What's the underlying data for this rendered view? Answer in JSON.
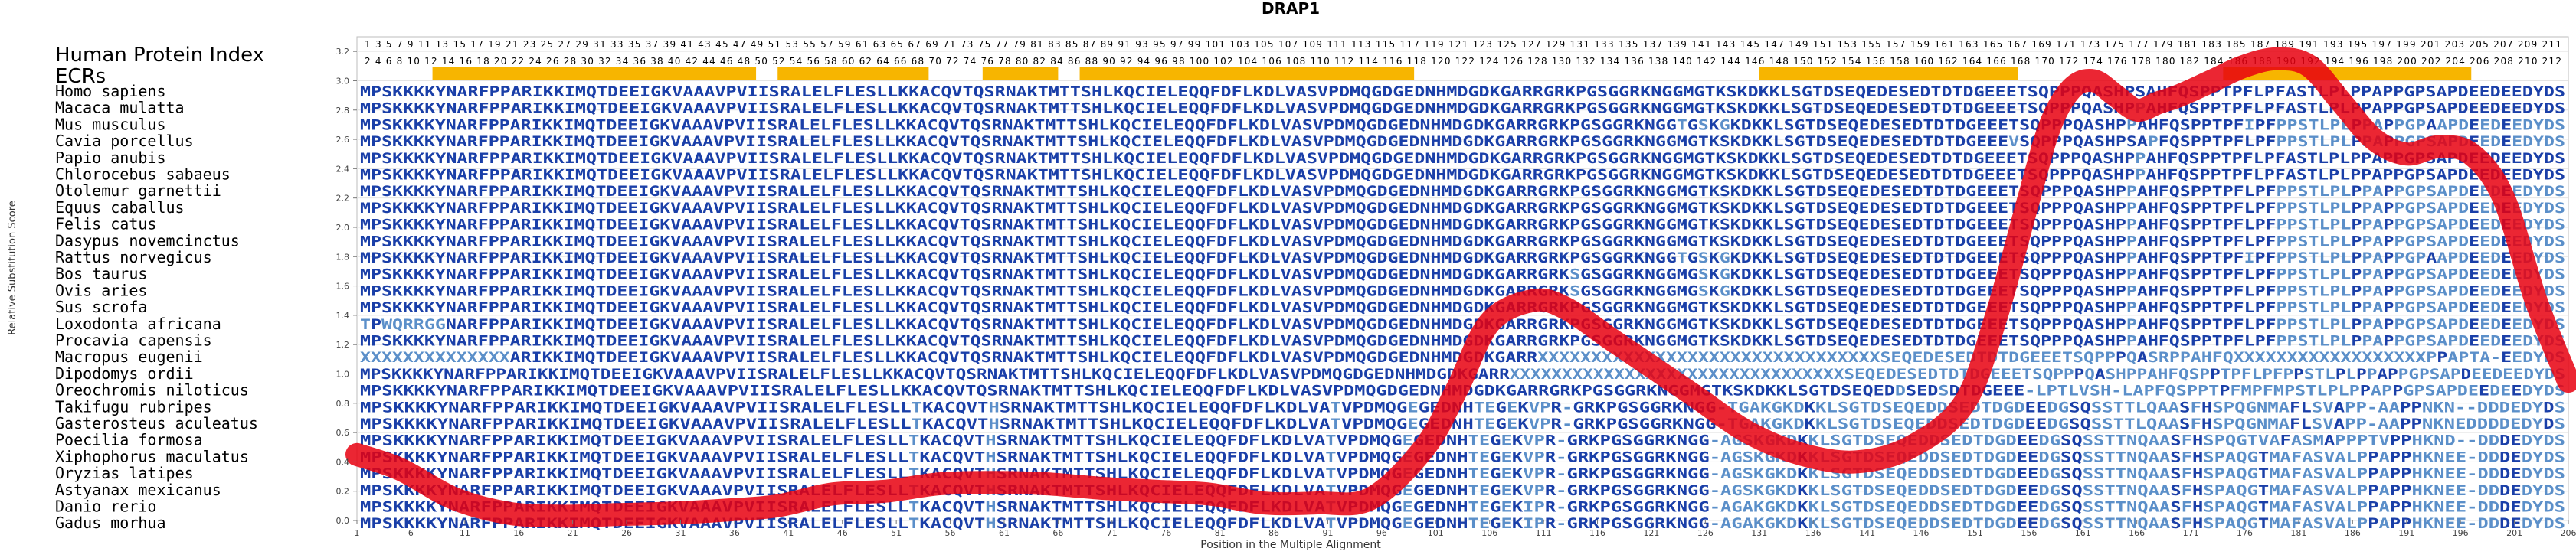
{
  "chart_data": {
    "type": "line",
    "title": "DRAP1",
    "xlabel": "Position in the Multiple Alignment",
    "ylabel": "Relative Substitution Score",
    "xlim": [
      1,
      206
    ],
    "ylim": [
      0.0,
      3.3
    ],
    "x_ticks": [
      1,
      6,
      11,
      16,
      21,
      26,
      31,
      36,
      41,
      46,
      51,
      56,
      61,
      66,
      71,
      76,
      81,
      86,
      91,
      96,
      101,
      106,
      111,
      116,
      121,
      126,
      131,
      136,
      141,
      146,
      151,
      156,
      161,
      166,
      171,
      176,
      181,
      186,
      191,
      196,
      201,
      206
    ],
    "y_ticks": [
      "0.0",
      "0.2",
      "0.4",
      "0.6",
      "0.8",
      "1.0",
      "1.2",
      "1.4",
      "1.6",
      "1.8",
      "2.0",
      "2.2",
      "2.4",
      "2.6",
      "2.8",
      "3.0",
      "3.2"
    ],
    "series": [
      {
        "x": [
          1,
          5,
          10,
          15,
          20,
          25,
          30,
          35,
          40,
          45,
          50,
          55,
          60,
          65,
          70,
          75,
          80,
          85,
          90,
          95,
          100,
          103,
          106,
          110,
          113,
          117,
          120,
          125,
          130,
          135,
          140,
          145,
          150,
          153,
          156,
          158,
          160,
          162,
          164,
          166,
          168,
          170,
          173,
          176,
          179,
          182,
          185,
          188,
          191,
          194,
          197,
          200,
          203,
          206
        ],
        "y": [
          0.45,
          0.35,
          0.15,
          0.05,
          0.03,
          0.04,
          0.05,
          0.07,
          0.1,
          0.18,
          0.2,
          0.25,
          0.26,
          0.25,
          0.22,
          0.2,
          0.18,
          0.12,
          0.12,
          0.15,
          0.5,
          0.9,
          1.35,
          1.5,
          1.45,
          1.25,
          1.1,
          0.85,
          0.6,
          0.45,
          0.4,
          0.5,
          0.8,
          1.4,
          2.2,
          2.7,
          2.95,
          3.0,
          2.9,
          2.8,
          2.85,
          2.9,
          3.0,
          3.1,
          3.15,
          3.1,
          2.85,
          2.6,
          2.5,
          2.55,
          2.5,
          2.2,
          1.5,
          0.95
        ]
      }
    ]
  },
  "alignment": {
    "index_label": "Human Protein Index",
    "ecr_label": "ECRs",
    "human_index_top": "1 3 5 7 9 11 13 15 17 19 21 23 25 27 29 31 33 35 37 39 41 43 45 47 49 51 53 55 57 59 61 63 65 67 69 71 73 75 77 79 81 83 85 87 89 91 93 95 97 99 101 103 105 107 109 111 113 115 117 119 121 123 125 127 129 131 133 135 137 139 141 143 145 147 149 151 153 155 157 159 161 163 165 167 169 171 173 175 177 179 181 183 185 187 189 191 193 195 197 199 201 203 205 207 209 211",
    "human_index_bottom": "2 4 6 8 10 12 14 16 18 20 22 24 26 28 30 32 34 36 38 40 42 44 46 48 50 52 54 56 58 60 62 64 66 68 70 72 74 76 78 80 82 84 86 88 90 92 94 96 98 100 102 104 106 108 110 112 114 116 118 120 122 124 126 128 130 132 134 136 138 140 142 144 146 148 150 152 154 156 158 160 162 164 166 168 170 172 174 176 178 180 182 184 186 188 190 192 194 196 198 200 202 204 206 208 210 212",
    "ecr_blocks": [
      [
        8,
        38
      ],
      [
        40,
        54
      ],
      [
        59,
        66
      ],
      [
        68,
        99
      ],
      [
        131,
        155
      ],
      [
        174,
        197
      ]
    ],
    "species": [
      {
        "name": "Homo sapiens",
        "seq": "MPSKKKKYNARFPPARIKKIMQTDEEIGKVAAAVPVIISRALELFLESLLKKACQVTQSRNAKTMTTSHLKQCIELEQQFDFLKDLVASVPDMQGDGEDNHMDGDKGARRGRKPGSGGRKNGGMGTKSKDKKLSGTDSEQEDESEDTDTDGEEETSQPPPQASHPSAHFQSPPTPFLPFASTLPLPPAPPGPSAPDEEDEEDYDS"
      },
      {
        "name": "Macaca mulatta",
        "seq": "MPSKKKKYNARFPPARIKKIMQTDEEIGKVAAAVPVIISRALELFLESLLKKACQVTQSRNAKTMTTSHLKQCIELEQQFDFLKDLVASVPDMQGDGEDNHMDGDKGARRGRKPGSGGRKNGGMGTKSKDKKLSGTDSEQEDESEDTDTDGEEETSQPPPQASHPPAHFQSPPTPFLPFASTLPLPPAPPGPSAPDEEDEEDYDS"
      },
      {
        "name": "Mus musculus",
        "seq": "MPSKKKKYNARFPPARIKKIMQTDEEIGKVAAAVPVIISRALELFLESLLKKACQVTQSRNAKTMTTSHLKQCIELEQQFDFLKDLVASVPDMQGDGEDNHMDGDKGARRGRKPGSGGRKNGGTGSKGKDKKLSGTDSEQEDESEDTDTDGEEETSQPPPQASHPPAHFQSPPTPFIPFPPSTLPLPPAPPGPAAPDEEDEEDYDS"
      },
      {
        "name": "Cavia porcellus",
        "seq": "MPSKKKKYNARFPPARIKKIMQTDEEIGKVAAAVPVIISRALELFLESLLKKACQVTQSRNAKTMTTSHLKQCIELEQQFDFLKDLVASVPDMQGDGEDNHMDGDKGARRGRKPGSGGRKNGGMGTKSKDKKLSGTDSEQEDESEDTDTDGEEEVSQPPPQASHPSAPFQSPPTPFLPFPPSTLPLPPAPPGPSAPDEEDEEDYDS"
      },
      {
        "name": "Papio anubis",
        "seq": "MPSKKKKYNARFPPARIKKIMQTDEEIGKVAAAVPVIISRALELFLESLLKKACQVTQSRNAKTMTTSHLKQCIELEQQFDFLKDLVASVPDMQGDGEDNHMDGDKGARRGRKPGSGGRKNGGMGTKSKDKKLSGTDSEQEDESEDTDTDGEEETSQPPPQASHPPAHFQSPPTPFLPFASTLPLPPAPPGPSAPDEEDEEDYDS"
      },
      {
        "name": "Chlorocebus sabaeus",
        "seq": "MPSKKKKYNARFPPARIKKIMQTDEEIGKVAAAVPVIISRALELFLESLLKKACQVTQSRNAKTMTTSHLKQCIELEQQFDFLKDLVASVPDMQGDGEDNHMDGDKGARRGRKPGSGGRKNGGMGTKSKDKKLSGTDSEQEDESEDTDTDGEEETSQPPPQASHPPAHFQSPPTPFLPFASTLPLPPAPPGPSAPDEEDEEDYDS"
      },
      {
        "name": "Otolemur garnettii",
        "seq": "MPSKKKKYNARFPPARIKKIMQTDEEIGKVAAAVPVIISRALELFLESLLKKACQVTQSRNAKTMTTSHLKQCIELEQQFDFLKDLVASVPDMQGDGEDNHMDGDKGARRGRKPGSGGRKNGGMGTKSKDKKLSGTDSEQEDESEDTDTDGEEETSQPPPQASHPPAHFQSPPTPFLPFPPSTLPLPPAPPGPSAPDEEDEEDYDS"
      },
      {
        "name": "Equus caballus",
        "seq": "MPSKKKKYNARFPPARIKKIMQTDEEIGKVAAAVPVIISRALELFLESLLKKACQVTQSRNAKTMTTSHLKQCIELEQQFDFLKDLVASVPDMQGDGEDNHMDGDKGARRGRKPGSGGRKNGGMGTKSKDKKLSGTDSEQEDESEDTDTDGEEETSQPPPQASHPPAHFQSPPTPFLPFPPSTLPLPPAPPGPSAPDEEDEEDYDS"
      },
      {
        "name": "Felis catus",
        "seq": "MPSKKKKYNARFPPARIKKIMQTDEEIGKVAAAVPVIISRALELFLESLLKKACQVTQSRNAKTMTTSHLKQCIELEQQFDFLKDLVASVPDMQGDGEDNHMDGDKGARRGRKPGSGGRKNGGMGTKSKDKKLSGTDSEQEDESEDTDTDGEEETSQPPPQASHPPAHFQSPPTPFLPFPPSTLPLPPAPPGPSAPDEEDEEDYDS"
      },
      {
        "name": "Dasypus novemcinctus",
        "seq": "MPSKKKKYNARFPPARIKKIMQTDEEIGKVAAAVPVIISRALELFLESLLKKACQVTQSRNAKTMTTSHLKQCIELEQQFDFLKDLVASVPDMQGDGEDNHMDGDKGARRGRKPGSGGRKNGGMGTKSKDKKLSGTDSEQEDESEDTDTDGEEETSQPPPQASHPPAHFQSPPTPFLPFPPSTLPLPPAPPGPSAPDEEDEEDYDS"
      },
      {
        "name": "Rattus norvegicus",
        "seq": "MPSKKKKYNARFPPARIKKIMQTDEEIGKVAAAVPVIISRALELFLESLLKKACQVTQSRNAKTMTTSHLKQCIELEQQFDFLKDLVASVPDMQGDGEDNHMDGDKGARRGRKPGSGGRKNGGTGSKGKDKKLSGTDSEQEDESEDTDTDGEEETSQPPPQASHPPAHFQSPPTPFIPFPPSTLPLPPAPPGPAAPDEEDEEDYDS"
      },
      {
        "name": "Bos taurus",
        "seq": "MPSKKKKYNARFPPARIKKIMQTDEEIGKVAAAVPVIISRALELFLESLLKKACQVTQSRNAKTMTTSHLKQCIELEQQFDFLKDLVASVPDMQGDGEDNHMDGDKGARRGRKSGSGGRKNGGMGSKGKDKKLSGTDSEQEDESEDTDTDGEEETSQPPPQASHPPAHFQSPPTPFLPFPPSTLPLPPAPPGPSAPDEEDEEDYDS"
      },
      {
        "name": "Ovis aries",
        "seq": "MPSKKKKYNARFPPARIKKIMQTDEEIGKVAAAVPVIISRALELFLESLLKKACQVTQSRNAKTMTTSHLKQCIELEQQFDFLKDLVASVPDMQGDGEDNHMDGDKGARRGRKSGSGGRKNGGMGSKGKDKKLSGTDSEQEDESEDTDTDGEEETSQPPPQASHPPAHFQSPPTPFLPFPPSTLPLPPAPPGPSAPDEEDEEDYDS"
      },
      {
        "name": "Sus scrofa",
        "seq": "MPSKKKKYNARFPPARIKKIMQTDEEIGKVAAAVPVIISRALELFLESLLKKACQVTQSRNAKTMTTSHLKQCIELEQQFDFLKDLVASVPDMQGDGEDNHMDGDKGARRGRKPGSGGRKNGGMGTKSKDKKLSGTDSEQEDESEDTDTDGEEETSQPPPQASHPPAHFQSPPTPFLPFPPSTLPLPPAPPGPSAPDEEDEEDYDS"
      },
      {
        "name": "Loxodonta africana",
        "seq": "TPWQRRGGNARFPPARIKKIMQTDEEIGKVAAAVPVIISRALELFLESLLKKACQVTQSRNAKTMTTSHLKQCIELEQQFDFLKDLVASVPDMQGDGEDNHMDGDKGARRGRKPGSGGRKNGGMGTKSKDKKLSGTDSEQEDESEDTDTDGEEETSQPPPQASHPPAHFQSPPTPFLPFPPSTLPLPPAPPGPSAPDEEDEEDYDS"
      },
      {
        "name": "Procavia capensis",
        "seq": "MPSKKKKYNARFPPARIKKIMQTDEEIGKVAAAVPVIISRALELFLESLLKKACQVTQSRNAKTMTTSHLKQCIELEQQFDFLKDLVASVPDMQGDGEDNHMDGDKGARRGRKPGSGGRKNGGMGTKSKDKKLSGTDSEQEDESEDTDTDGEEETSQPPPQASHPPAHFQSPPTPFLPFPPSTLPLPPAPPGPSAPDEEDEEDYDS"
      },
      {
        "name": "Macropus eugenii",
        "seq": "XXXXXXXXXXXXXXARIKKIMQTDEEIGKVAAAVPVIISRALELFLESLLKKACQVTQSRNAKTMTTSHLKQCIELEQQFDFLKDLVASVPDMQGDGEDNHMDGDKGARRXXXXXXXXXXXXXXXXXXXXXXXXXXXXXXXXSEQEDESEDTDTDGEEETSQPPPQASRPPAHFQXXXXXXXXXXXXXXXXXXPPAPTA-EEDYDS"
      },
      {
        "name": "Dipodomys ordii",
        "seq": "MPSKKKKYNARFPPARIKKIMQTDEEIGKVAAAVPVIISRALELFLESLLKKACQVTQSRNAKTMTTSHLKQCIELEQQFDFLKDLVASVPDMQGDGEDNHMDGDKGARRXXXXXXXXXXXXXXXXXXXXXXXXXXXXXXXXSEQEDESEDTDTDGEEETSQPPPQASHPPAHFQSPPTPFLPFPPSTLPLPPAPPGPSAPDEEDEEDYDS"
      },
      {
        "name": "Oreochromis niloticus",
        "seq": "MPSKKKKYNARFPPARIKKIMQTDEEIGKVAAAVPVIISRALELFLESLLKKACQVTQSRNAKTMTTSHLKQCIELEQQFDFLKDLVASVPDMQGDGEDNHMDGDKGARRGRKPGSGGRKNGGMGTKSKDKKLSGTDSEQEDDSEDSDTDGEEE-LPTLVSH-LAPFQSPPTPFMPFMPSTLPLPPAPPGPSAPDEEDEEDYDS"
      },
      {
        "name": "Takifugu rubripes",
        "seq": "MPSKKKKYNARFPPARIKKIMQTDEEIGKVAAAVPVIISRALELFLESLLTKACQVTHSRNAKTMTTSHLKQCIELEQQFDFLKDLVATVPDMQGEGEDNHTEGEKVPR-GRKPGSGGRKNGG-TGAKGKDKKLSGTDSEQEDDSEDTDGDEEDGSQSSTTLQAASFHSPQGNMAFLSVAPP-AAPPNKN--DDDEDYDS"
      },
      {
        "name": "Gasterosteus aculeatus",
        "seq": "MPSKKKKYNARFPPARIKKIMQTDEEIGKVAAAVPVIISRALELFLESLLTKACQVTHSRNAKTMTTSHLKQCIELEQQFDFLKDLVATVPDMQGEGEDNHTEGEKVPR-GRKPGSGGRKNGG-TGAKGKDKKLSGTDSEQEDDSEDTDGDEEDGSQSSTTLQAASFHSPQGNMAFLSVAPP-AAPPNKNEDDDDEDYDS"
      },
      {
        "name": "Poecilia formosa",
        "seq": "MPSKKKKYNARFPPARIKKIMQTDEEIGKVAAAVPVIISRALELFLESLLTKACQVTHSRNAKTMTTSHLKQCIELEQQFDFLKDLVATVPDMQGEGEDNHTEGEKVPR-GRKPGSGGRKNGG-AGSKGKDKKLSGTDSEQEDDSEDTDGDEEDGSQSSTTNQAASFHSPQGTVAFASMAPPPTVPPHKND--DDDEDYDS"
      },
      {
        "name": "Xiphophorus maculatus",
        "seq": "MPSKKKKYNARFPPARIKKIMQTDEEIGKVAAAVPVIISRALELFLESLLTKACQVTHSRNAKTMTTSHLKQCIELEQQFDFLKDLVATVPDMQGEGEDNHTEGEKVPR-GRKPGSGGRKNGG-AGSKGKDKKLSGTDSEQEDDSEDTDGDEEDGSQSSTTNQAASFHSPAQGTMAFASVALPPAPPHKNEE-DDDEDYDS"
      },
      {
        "name": "Oryzias latipes",
        "seq": "MPSKKKKYNARFPPARIKKIMQTDEEIGKVAAAVPVIISRALELFLESLLTKACQVTHSRNAKTMTTSHLKQCIELEQQFDFLKDLVATVPDMQGEGEDNHTEGEKVPR-GRKPGSGGRKNGG-AGSKGKDKKLSGTDSEQEDDSEDTDGDEEDGSQSSTTNQAASFHSPAQGTMAFASVALPPAPPHKNEE-DDDEDYDS"
      },
      {
        "name": "Astyanax mexicanus",
        "seq": "MPSKKKKYNARFPPARIKKIMQTDEEIGKVAAAVPVIISRALELFLESLLTKACQVTHSRNAKTMTTSHLKQCIELEQQFDFLKDLVATVPDMQGEGEDNHTEGEKVPR-GRKPGSGGRKNGG-AGSKGKDKKLSGTDSEQEDDSEDTDGDEEDGSQSSTTNQAASFHSPAQGTMAFASVALPPAPPHKNEE-DDDEDYDS"
      },
      {
        "name": "Danio rerio",
        "seq": "MPSKKKKYNARFPPARIKKIMQTDEEIGKVAAAVPVIISRALELFLESLLTKACQVTHSRNAKTMTTSHLKQCIELEQQFDFLKDLVATVPDMQGEGEDNHTEGEKIPR-GRKPGSGGRKNGG-AGAKGKDKKLSGTDSEQEDDSEDTDGDEEDGSQSSTTNQAASFHSPAQGTMAFASVALPPAPPHKNEE-DDDEDYDS"
      },
      {
        "name": "Gadus morhua",
        "seq": "MPSKKKKYNARFPPARIKKIMQTDEEIGKVAAAVPVIISRALELFLESLLTKACQVTHSRNAKTMTTSHLKQCIELEQQFDFLKDLVATVPDMQGEGEDNHTEGEKIPR-GRKPGSGGRKNGG-AGAKGKDKKLSGTDSEQEDDSEDTDGDEEDGSQSSTTNQAASFHSPAQGTMAFASVALPPAPPHKNEE-DDDEDYDS"
      }
    ]
  },
  "colors": {
    "seq_conserved": "#1a3fa8",
    "seq_divergent": "#5b8fc9",
    "curve": "#e8000f",
    "ecr": "#f7b500",
    "grid": "#e4e4e4"
  }
}
